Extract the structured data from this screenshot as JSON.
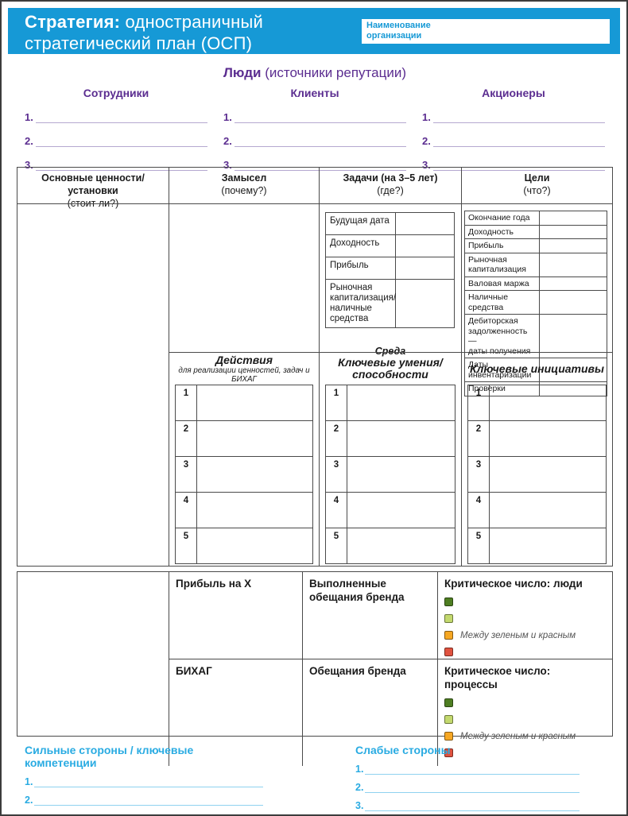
{
  "header": {
    "title_line1_bold": "Стратегия:",
    "title_line1_rest": " одностраничный",
    "title_line2": "стратегический план (ОСП)",
    "org_box_label": "Наименование\nорганизации",
    "bar_color": "#1699d6",
    "accent_purple": "#5b2d90",
    "accent_cyan": "#29abe2"
  },
  "people": {
    "title_bold": "Люди",
    "title_rest": " (источники репутации)",
    "columns": [
      "Сотрудники",
      "Клиенты",
      "Акционеры"
    ],
    "item_numbers": [
      "1.",
      "2.",
      "3."
    ]
  },
  "main_table": {
    "headers": [
      {
        "title": "Основные ценности/установки",
        "sub": "(стоит ли?)"
      },
      {
        "title": "Замысел",
        "sub": "(почему?)"
      },
      {
        "title": "Задачи (на 3–5 лет)",
        "sub": "(где?)"
      },
      {
        "title": "Цели",
        "sub": "(что?)"
      }
    ],
    "tasks_rows": [
      "Будущая дата",
      "Доходность",
      "Прибыль",
      "Рыночная\nкапитализация/\nналичные\nсредства"
    ],
    "environment_label": "Среда",
    "goals_rows": [
      "Окончание года",
      "Доходность",
      "Прибыль",
      "Рыночная\nкапитализация",
      "Валовая маржа",
      "Наличные средства",
      "Дебиторская\nзадолженность —\nдаты получения",
      "Даты инвентаризации",
      "Проверки"
    ],
    "actions_title": "Действия",
    "actions_subtitle": "для реализации ценностей, задач и БИХАГ",
    "skills_title": "Ключевые умения/\nспособности",
    "initiatives_title": "Ключевые инициативы",
    "row_numbers": [
      "1",
      "2",
      "3",
      "4",
      "5"
    ]
  },
  "bottom_table": {
    "row1": {
      "profit_label": "Прибыль на X",
      "brand_label": "Выполненные\nобещания бренда",
      "critical_label": "Критическое число: люди"
    },
    "row2": {
      "bhag_label": "БИХАГ",
      "brand_label": "Обещания бренда",
      "critical_label": "Критическое число: процессы"
    },
    "legend_note": "Между зеленым и красным",
    "legend_colors": {
      "green": "#4e7e22",
      "light_green": "#c3d96e",
      "orange": "#f6a723",
      "red": "#e0523f"
    }
  },
  "footer": {
    "strengths_title": "Сильные стороны / ключевые компетенции",
    "weaknesses_title": "Слабые стороны",
    "item_numbers": [
      "1.",
      "2.",
      "3."
    ]
  }
}
